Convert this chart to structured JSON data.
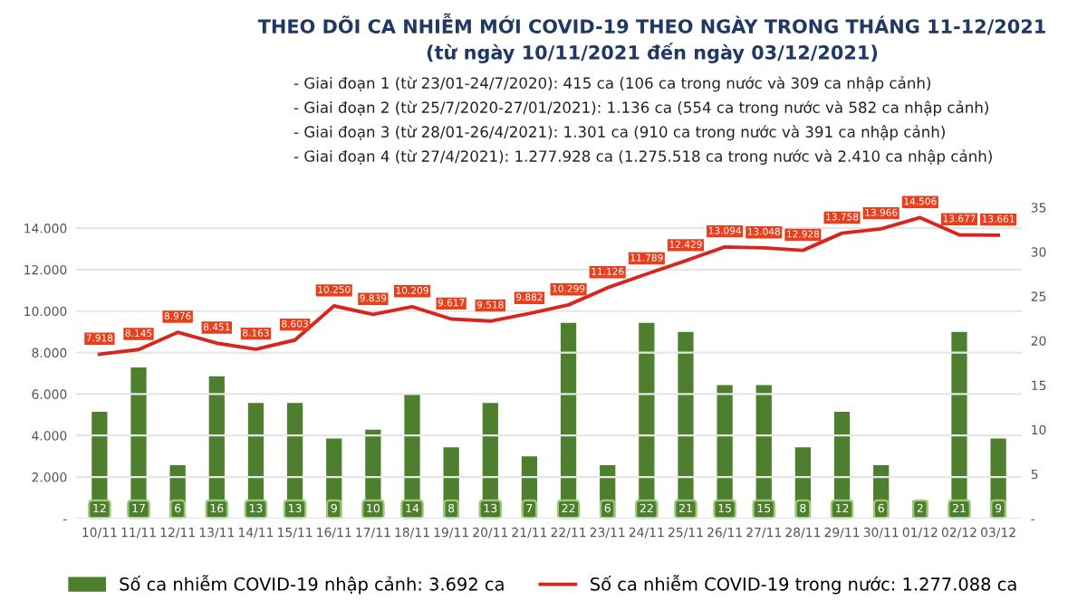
{
  "chart_data": {
    "type": "bar",
    "title": "THEO DÕI CA NHIỄM MỚI COVID-19 THEO NGÀY TRONG THÁNG 11-12/2021",
    "subtitle": "(từ ngày 10/11/2021 đến ngày 03/12/2021)",
    "annotations": [
      "- Giai đoạn 1 (từ 23/01-24/7/2020): 415 ca (106 ca trong nước và 309 ca nhập cảnh)",
      "- Giai đoạn 2 (từ 25/7/2020-27/01/2021): 1.136 ca (554 ca trong nước và 582 ca nhập cảnh)",
      "- Giai đoạn 3 (từ 28/01-26/4/2021): 1.301 ca (910 ca trong nước và 391 ca nhập cảnh)",
      "- Giai đoạn 4 (từ 27/4/2021): 1.277.928 ca (1.275.518 ca trong nước và 2.410 ca nhập cảnh)"
    ],
    "categories": [
      "10/11",
      "11/11",
      "12/11",
      "13/11",
      "14/11",
      "15/11",
      "16/11",
      "17/11",
      "18/11",
      "19/11",
      "20/11",
      "21/11",
      "22/11",
      "23/11",
      "24/11",
      "25/11",
      "26/11",
      "27/11",
      "28/11",
      "29/11",
      "30/11",
      "01/12",
      "02/12",
      "03/12"
    ],
    "series": [
      {
        "name": "Số ca nhiễm COVID-19 nhập cảnh: 3.692 ca",
        "axis": "y2",
        "color": "#4e7f2e",
        "values": [
          12,
          17,
          6,
          16,
          13,
          13,
          9,
          10,
          14,
          8,
          13,
          7,
          22,
          6,
          22,
          21,
          15,
          15,
          8,
          12,
          6,
          2,
          21,
          9
        ],
        "value_labels": [
          "12",
          "17",
          "6",
          "16",
          "13",
          "13",
          "9",
          "10",
          "14",
          "8",
          "13",
          "7",
          "22",
          "6",
          "22",
          "21",
          "15",
          "15",
          "8",
          "12",
          "6",
          "2",
          "21",
          "9"
        ]
      },
      {
        "name": "Số ca nhiễm COVID-19 trong nước: 1.277.088 ca",
        "type": "line",
        "color": "#d7261e",
        "values": [
          7918,
          8145,
          8976,
          8451,
          8163,
          8603,
          10250,
          9839,
          10209,
          9617,
          9518,
          9882,
          10299,
          11126,
          11789,
          12429,
          13094,
          13048,
          12928,
          13758,
          13966,
          14506,
          13677,
          13661
        ],
        "value_labels": [
          "7.918",
          "8.145",
          "8.976",
          "8.451",
          "8.163",
          "8.603",
          "10.250",
          "9.839",
          "10.209",
          "9.617",
          "9.518",
          "9.882",
          "10.299",
          "11.126",
          "11.789",
          "12.429",
          "13.094",
          "13.048",
          "12.928",
          "13.758",
          "13.966",
          "14.506",
          "13.677",
          "13.661"
        ]
      }
    ],
    "ylim": [
      0,
      15000
    ],
    "yticks": [
      {
        "value": 0,
        "label": "-"
      },
      {
        "value": 2000,
        "label": "2.000"
      },
      {
        "value": 4000,
        "label": "4.000"
      },
      {
        "value": 6000,
        "label": "6.000"
      },
      {
        "value": 8000,
        "label": "8.000"
      },
      {
        "value": 10000,
        "label": "10.000"
      },
      {
        "value": 12000,
        "label": "12.000"
      },
      {
        "value": 14000,
        "label": "14.000"
      }
    ],
    "y2lim": [
      0,
      35
    ],
    "y2ticks": [
      {
        "value": 0,
        "label": "-"
      },
      5,
      10,
      15,
      20,
      25,
      30,
      35
    ],
    "grid": "y",
    "legend": "bottom",
    "marker": "none",
    "line_style": "solid"
  }
}
